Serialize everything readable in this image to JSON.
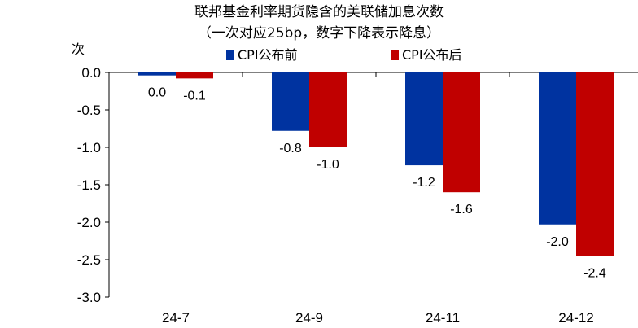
{
  "chart_data": {
    "type": "bar",
    "title": "联邦基金利率期货隐含的美联储加息次数",
    "subtitle": "（一次对应25bp，数字下降表示降息）",
    "ylabel": "次",
    "ylim": [
      -3.0,
      0.0
    ],
    "yticks": [
      "0.0",
      "-0.5",
      "-1.0",
      "-1.5",
      "-2.0",
      "-2.5",
      "-3.0"
    ],
    "categories": [
      "24-7",
      "24-9",
      "24-11",
      "24-12"
    ],
    "series": [
      {
        "name": "CPI公布前",
        "color": "#0033a0",
        "values": [
          -0.04,
          -0.78,
          -1.24,
          -2.03
        ],
        "labels": [
          "0.0",
          "-0.8",
          "-1.2",
          "-2.0"
        ]
      },
      {
        "name": "CPI公布后",
        "color": "#c00000",
        "values": [
          -0.08,
          -1.0,
          -1.6,
          -2.45
        ],
        "labels": [
          "-0.1",
          "-1.0",
          "-1.6",
          "-2.4"
        ]
      }
    ],
    "legend_position": "top",
    "grid": false
  }
}
